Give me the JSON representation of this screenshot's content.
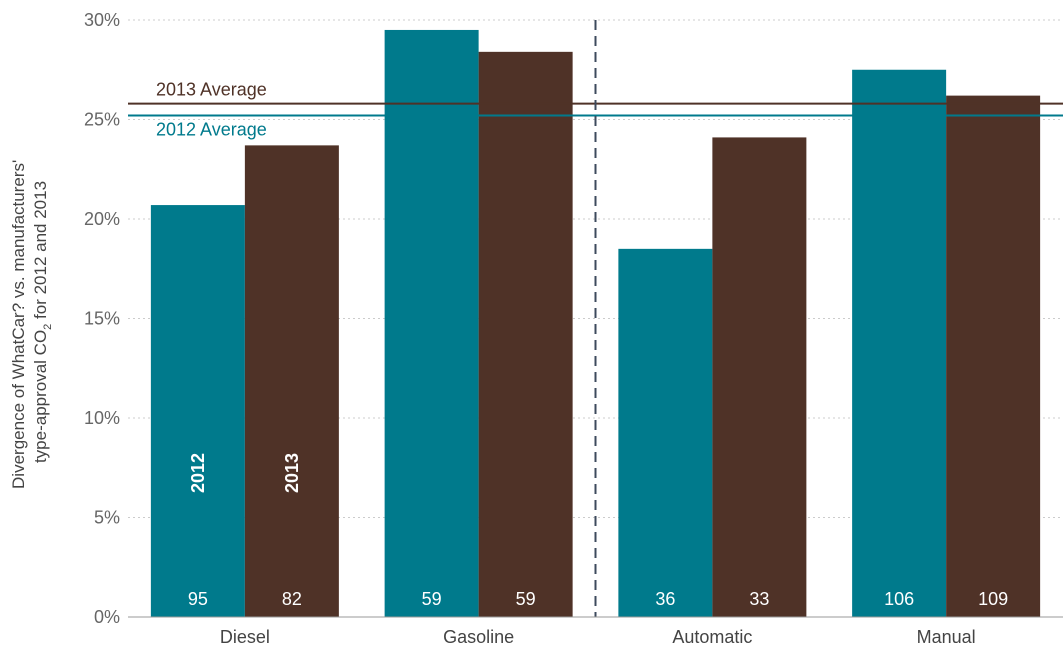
{
  "chart_data": {
    "type": "bar",
    "ylabel_line1": "Divergence of WhatCar? vs. manufacturers'",
    "ylabel_line2_pre": "type-approval CO",
    "ylabel_line2_sub": "2",
    "ylabel_line2_post": " for 2012 and 2013",
    "ylim": [
      0,
      30
    ],
    "yticks": [
      0,
      5,
      10,
      15,
      20,
      25,
      30
    ],
    "ytick_labels": [
      "0%",
      "5%",
      "10%",
      "15%",
      "20%",
      "25%",
      "30%"
    ],
    "categories": [
      "Diesel",
      "Gasoline",
      "Automatic",
      "Manual"
    ],
    "series": [
      {
        "name": "2012",
        "color": "#007a8c",
        "values": [
          20.7,
          29.5,
          18.5,
          27.5
        ],
        "counts": [
          "95",
          "59",
          "36",
          "106"
        ]
      },
      {
        "name": "2013",
        "color": "#4f3227",
        "values": [
          23.7,
          28.4,
          24.1,
          26.2
        ],
        "counts": [
          "82",
          "59",
          "33",
          "109"
        ]
      }
    ],
    "averages": [
      {
        "label": "2013 Average",
        "value": 25.8,
        "color": "#4f3227"
      },
      {
        "label": "2012 Average",
        "value": 25.2,
        "color": "#007a8c"
      }
    ],
    "divider_after_category": 1,
    "grid": true
  }
}
